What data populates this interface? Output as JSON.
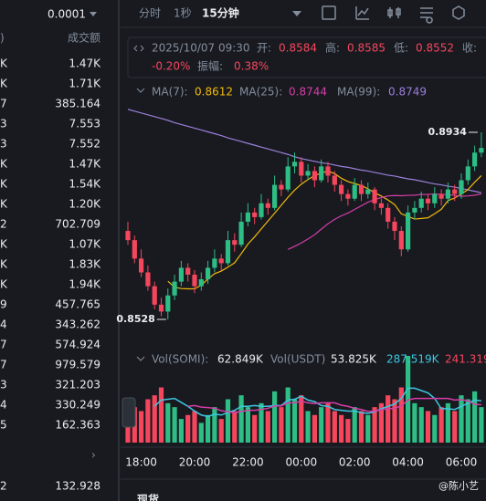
{
  "order_book": {
    "precision": "0.0001",
    "columns": [
      ")",
      "成交额"
    ],
    "rows": [
      [
        "K",
        "1.47K"
      ],
      [
        "K",
        "1.71K"
      ],
      [
        "7",
        "385.164"
      ],
      [
        "3",
        "7.553"
      ],
      [
        "3",
        "7.552"
      ],
      [
        "K",
        "1.47K"
      ],
      [
        "K",
        "1.54K"
      ],
      [
        "K",
        "1.20K"
      ],
      [
        "2",
        "702.709"
      ],
      [
        "K",
        "1.07K"
      ],
      [
        "K",
        "1.83K"
      ],
      [
        "K",
        "1.94K"
      ],
      [
        "9",
        "457.765"
      ],
      [
        "4",
        "343.262"
      ],
      [
        "7",
        "574.924"
      ],
      [
        "7",
        "979.579"
      ],
      [
        "3",
        "321.203"
      ],
      [
        "4",
        "330.249"
      ],
      [
        "5",
        "162.363"
      ]
    ],
    "last_row": [
      "2",
      "132.928"
    ]
  },
  "toolbar": {
    "tabs": [
      "分时",
      "1秒",
      "15分钟"
    ]
  },
  "chart_data": {
    "type": "candlestick",
    "info": {
      "time": "2025/10/07 09:30",
      "open_label": "开:",
      "open": "0.8584",
      "high_label": "高:",
      "high": "0.8585",
      "low_label": "低:",
      "low": "0.8552",
      "close_label": "收:",
      "change": "-0.20%",
      "amplitude_label": "振幅:",
      "amplitude": "0.38%"
    },
    "ma_legend": [
      {
        "label": "MA(7):",
        "value": "0.8612"
      },
      {
        "label": "MA(25):",
        "value": "0.8744"
      },
      {
        "label": "MA(99):",
        "value": "0.8749"
      }
    ],
    "vol_legend": [
      "Vol(SOMI):",
      "62.849K",
      "Vol(USDT)",
      "53.825K",
      "287.519K",
      "241.319"
    ],
    "x_labels": [
      "18:00",
      "20:00",
      "22:00",
      "00:00",
      "02:00",
      "04:00",
      "06:00"
    ],
    "up_color": "#2ebd85",
    "down_color": "#f6465d",
    "candles": [
      [
        0.872,
        0.874,
        0.869,
        0.87
      ],
      [
        0.87,
        0.871,
        0.865,
        0.866
      ],
      [
        0.866,
        0.868,
        0.862,
        0.863
      ],
      [
        0.863,
        0.8645,
        0.859,
        0.86
      ],
      [
        0.86,
        0.861,
        0.855,
        0.856
      ],
      [
        0.856,
        0.8575,
        0.8535,
        0.8545
      ],
      [
        0.8545,
        0.8595,
        0.8528,
        0.858
      ],
      [
        0.858,
        0.8625,
        0.857,
        0.861
      ],
      [
        0.861,
        0.8655,
        0.86,
        0.864
      ],
      [
        0.864,
        0.865,
        0.861,
        0.8625
      ],
      [
        0.8625,
        0.8635,
        0.8585,
        0.86
      ],
      [
        0.86,
        0.863,
        0.859,
        0.8615
      ],
      [
        0.8615,
        0.8655,
        0.8605,
        0.864
      ],
      [
        0.864,
        0.868,
        0.863,
        0.866
      ],
      [
        0.866,
        0.867,
        0.8635,
        0.865
      ],
      [
        0.865,
        0.872,
        0.8645,
        0.87
      ],
      [
        0.87,
        0.8715,
        0.8675,
        0.869
      ],
      [
        0.869,
        0.876,
        0.8685,
        0.874
      ],
      [
        0.874,
        0.878,
        0.873,
        0.876
      ],
      [
        0.876,
        0.877,
        0.8735,
        0.875
      ],
      [
        0.875,
        0.88,
        0.8745,
        0.878
      ],
      [
        0.878,
        0.879,
        0.8755,
        0.877
      ],
      [
        0.877,
        0.884,
        0.8765,
        0.882
      ],
      [
        0.882,
        0.883,
        0.8795,
        0.881
      ],
      [
        0.881,
        0.888,
        0.8805,
        0.886
      ],
      [
        0.886,
        0.889,
        0.8845,
        0.887
      ],
      [
        0.887,
        0.888,
        0.8825,
        0.884
      ],
      [
        0.884,
        0.8865,
        0.883,
        0.885
      ],
      [
        0.885,
        0.886,
        0.8815,
        0.883
      ],
      [
        0.883,
        0.8875,
        0.8825,
        0.886
      ],
      [
        0.886,
        0.887,
        0.8825,
        0.884
      ],
      [
        0.884,
        0.885,
        0.8805,
        0.882
      ],
      [
        0.882,
        0.883,
        0.8785,
        0.88
      ],
      [
        0.88,
        0.881,
        0.8775,
        0.879
      ],
      [
        0.879,
        0.8835,
        0.8785,
        0.882
      ],
      [
        0.882,
        0.883,
        0.8785,
        0.88
      ],
      [
        0.88,
        0.8825,
        0.879,
        0.881
      ],
      [
        0.881,
        0.8815,
        0.8765,
        0.878
      ],
      [
        0.878,
        0.879,
        0.8755,
        0.877
      ],
      [
        0.877,
        0.878,
        0.8725,
        0.874
      ],
      [
        0.874,
        0.875,
        0.87,
        0.872
      ],
      [
        0.872,
        0.873,
        0.8665,
        0.868
      ],
      [
        0.868,
        0.8775,
        0.8675,
        0.876
      ],
      [
        0.876,
        0.8785,
        0.8745,
        0.877
      ],
      [
        0.877,
        0.8805,
        0.876,
        0.879
      ],
      [
        0.879,
        0.88,
        0.8765,
        0.878
      ],
      [
        0.878,
        0.8815,
        0.877,
        0.88
      ],
      [
        0.88,
        0.881,
        0.8775,
        0.879
      ],
      [
        0.879,
        0.8825,
        0.878,
        0.881
      ],
      [
        0.881,
        0.882,
        0.8785,
        0.88
      ],
      [
        0.88,
        0.8845,
        0.879,
        0.883
      ],
      [
        0.883,
        0.8875,
        0.882,
        0.886
      ],
      [
        0.886,
        0.8905,
        0.885,
        0.889
      ],
      [
        0.889,
        0.8934,
        0.888,
        0.89
      ]
    ],
    "ma99": {
      "color": "#9b7fd8",
      "values": [
        0.8984,
        0.898,
        0.8976,
        0.8972,
        0.8968,
        0.8964,
        0.896,
        0.8955,
        0.8951,
        0.8947,
        0.8943,
        0.8939,
        0.8935,
        0.8931,
        0.8927,
        0.8922,
        0.8918,
        0.8914,
        0.891,
        0.8906,
        0.8902,
        0.8898,
        0.8894,
        0.889,
        0.8886,
        0.8881,
        0.8877,
        0.8874,
        0.8871,
        0.8868,
        0.8866,
        0.8863,
        0.886,
        0.8858,
        0.8855,
        0.8852,
        0.885,
        0.8847,
        0.8844,
        0.8841,
        0.8839,
        0.8836,
        0.8833,
        0.8831,
        0.8828,
        0.8825,
        0.8822,
        0.882,
        0.8817,
        0.8815,
        0.8812,
        0.8809,
        0.8806,
        0.8803
      ]
    },
    "volumes": [
      30,
      45,
      40,
      55,
      60,
      70,
      50,
      45,
      30,
      35,
      40,
      25,
      35,
      45,
      30,
      55,
      40,
      60,
      45,
      35,
      50,
      40,
      65,
      45,
      70,
      55,
      60,
      40,
      35,
      45,
      50,
      40,
      35,
      30,
      45,
      40,
      35,
      45,
      50,
      60,
      55,
      70,
      110,
      50,
      45,
      40,
      35,
      45,
      50,
      40,
      60,
      55,
      65,
      45
    ]
  },
  "bottom_tabs": [
    "现货"
  ],
  "watermark": "@陈小艺"
}
